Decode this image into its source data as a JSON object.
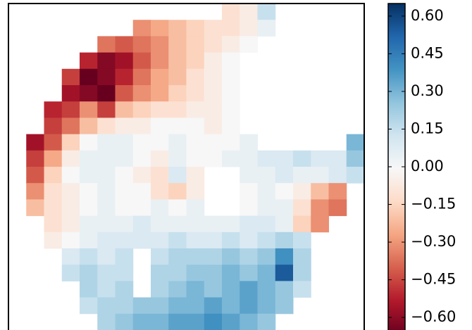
{
  "chart_data": {
    "type": "heatmap",
    "cmap": [
      "#67001f",
      "#b2182b",
      "#d6604d",
      "#f4a582",
      "#fddbc7",
      "#f7f7f7",
      "#d1e5f0",
      "#92c5de",
      "#4393c3",
      "#2166ac",
      "#053061"
    ],
    "clim": [
      -0.65,
      0.65
    ],
    "colorbar_ticks": [
      {
        "value": 0.6,
        "label": "0.60"
      },
      {
        "value": 0.45,
        "label": "0.45"
      },
      {
        "value": 0.3,
        "label": "0.30"
      },
      {
        "value": 0.15,
        "label": "0.15"
      },
      {
        "value": 0,
        "label": "0.00"
      },
      {
        "value": -0.15,
        "label": "−0.15"
      },
      {
        "value": -0.3,
        "label": "−0.30"
      },
      {
        "value": -0.45,
        "label": "−0.45"
      },
      {
        "value": -0.6,
        "label": "−0.60"
      }
    ],
    "z": [
      [
        null,
        null,
        null,
        null,
        null,
        null,
        null,
        null,
        null,
        null,
        null,
        null,
        -0.1,
        -0.05,
        0.15,
        null,
        null,
        null,
        null,
        null
      ],
      [
        null,
        null,
        null,
        null,
        null,
        null,
        null,
        -0.3,
        -0.25,
        -0.2,
        -0.15,
        -0.1,
        -0.1,
        -0.05,
        0.05,
        null,
        null,
        null,
        null,
        null
      ],
      [
        null,
        null,
        null,
        null,
        null,
        -0.35,
        -0.4,
        -0.35,
        -0.3,
        -0.2,
        -0.15,
        -0.1,
        -0.05,
        0,
        null,
        null,
        null,
        null,
        null,
        null
      ],
      [
        null,
        null,
        null,
        null,
        -0.5,
        -0.6,
        -0.55,
        -0.4,
        -0.3,
        -0.2,
        -0.15,
        -0.05,
        0,
        null,
        null,
        null,
        null,
        null,
        null,
        null
      ],
      [
        null,
        null,
        null,
        -0.45,
        -0.65,
        -0.6,
        -0.5,
        -0.35,
        -0.25,
        -0.2,
        -0.1,
        -0.05,
        0,
        null,
        null,
        null,
        null,
        null,
        null,
        null
      ],
      [
        null,
        null,
        null,
        -0.55,
        -0.6,
        -0.65,
        -0.4,
        -0.3,
        -0.25,
        -0.15,
        -0.1,
        -0.05,
        0,
        null,
        null,
        null,
        null,
        null,
        null,
        null
      ],
      [
        null,
        null,
        -0.5,
        -0.45,
        -0.3,
        -0.45,
        -0.2,
        -0.15,
        -0.1,
        -0.1,
        -0.05,
        -0.05,
        0,
        null,
        null,
        null,
        null,
        null,
        null,
        null
      ],
      [
        null,
        null,
        -0.45,
        -0.35,
        -0.2,
        -0.1,
        -0.05,
        -0.05,
        0,
        0,
        0,
        -0.05,
        0,
        null,
        null,
        null,
        null,
        null,
        null,
        null
      ],
      [
        null,
        -0.55,
        -0.4,
        -0.15,
        0,
        0.05,
        0.05,
        0,
        0,
        0.05,
        0,
        0,
        0,
        0.05,
        null,
        null,
        null,
        null,
        null,
        0.3
      ],
      [
        null,
        -0.45,
        -0.25,
        -0.05,
        0.05,
        0.05,
        0.05,
        0,
        -0.05,
        0.05,
        0,
        0,
        0.05,
        0.05,
        0.1,
        0.1,
        0.15,
        0.1,
        0.1,
        0.25
      ],
      [
        null,
        -0.4,
        -0.15,
        0,
        0.05,
        0.05,
        0,
        -0.05,
        -0.1,
        0.1,
        -0.05,
        null,
        null,
        0.05,
        0.05,
        0.1,
        0.05,
        0.05,
        0.1,
        0.15
      ],
      [
        null,
        -0.3,
        -0.1,
        -0.05,
        0,
        0.05,
        0,
        0,
        -0.1,
        -0.15,
        -0.05,
        null,
        null,
        0,
        0.05,
        0,
        -0.05,
        -0.2,
        -0.3,
        null
      ],
      [
        null,
        -0.2,
        -0.1,
        -0.05,
        0,
        0.05,
        0,
        0,
        0.05,
        0,
        0.05,
        null,
        null,
        0,
        0.05,
        0.05,
        -0.1,
        -0.3,
        -0.35,
        null
      ],
      [
        null,
        null,
        -0.1,
        -0.05,
        0.05,
        0.05,
        0.05,
        0.1,
        0.05,
        0.05,
        0.05,
        0.05,
        0.05,
        0.1,
        0.1,
        0.05,
        -0.15,
        -0.3,
        null,
        null
      ],
      [
        null,
        null,
        -0.05,
        0,
        0.05,
        0.1,
        0.1,
        0.1,
        0.1,
        0.15,
        0.1,
        0.1,
        0.15,
        0.1,
        0.15,
        0.2,
        0.15,
        null,
        null,
        null
      ],
      [
        null,
        null,
        null,
        0.1,
        0.15,
        0.1,
        0.15,
        null,
        0.15,
        0.2,
        0.2,
        0.2,
        0.25,
        0.2,
        0.25,
        0.4,
        0.2,
        null,
        null,
        null
      ],
      [
        null,
        null,
        null,
        0.15,
        0.2,
        0.15,
        0.15,
        null,
        0.2,
        0.2,
        0.25,
        0.25,
        0.3,
        0.25,
        0.3,
        0.55,
        0.2,
        null,
        null,
        null
      ],
      [
        null,
        null,
        null,
        null,
        0.2,
        0.15,
        0.2,
        null,
        0.2,
        0.25,
        0.3,
        0.25,
        0.3,
        0.35,
        0.3,
        0.25,
        0.15,
        null,
        null,
        null
      ],
      [
        null,
        null,
        null,
        null,
        0.15,
        0.2,
        0.2,
        0.25,
        0.25,
        0.3,
        0.3,
        0.35,
        0.3,
        0.35,
        0.3,
        0.25,
        null,
        null,
        null,
        null
      ],
      [
        null,
        null,
        null,
        null,
        null,
        0.2,
        0.25,
        0.3,
        0.3,
        0.35,
        0.35,
        0.4,
        0.35,
        0.3,
        0.25,
        null,
        null,
        null,
        null,
        null
      ]
    ]
  }
}
